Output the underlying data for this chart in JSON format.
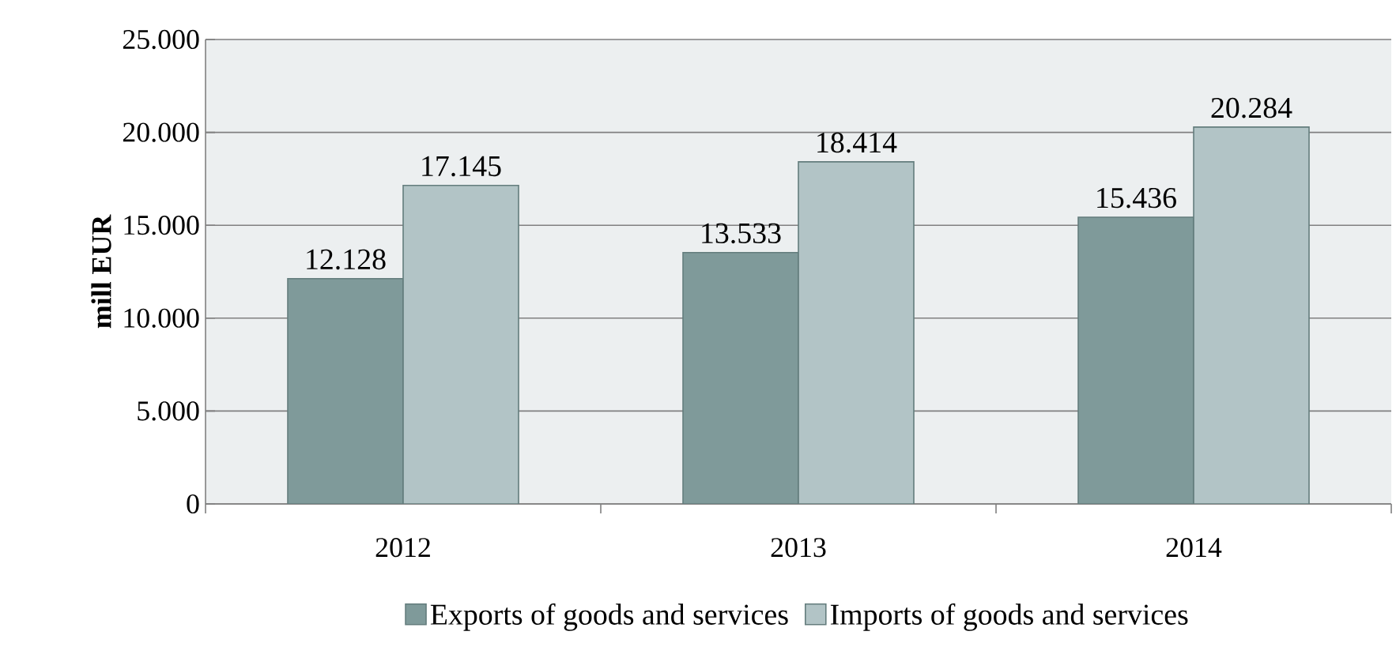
{
  "chart_data": {
    "type": "bar",
    "ylabel": "mill EUR",
    "categories": [
      "2012",
      "2013",
      "2014"
    ],
    "series": [
      {
        "name": "Exports of goods and services",
        "color": "#7f9a9a",
        "values": [
          12128,
          13533,
          15436
        ],
        "value_labels": [
          "12.128",
          "13.533",
          "15.436"
        ]
      },
      {
        "name": "Imports of goods and services",
        "color": "#b2c4c6",
        "values": [
          17145,
          18414,
          20284
        ],
        "value_labels": [
          "17.145",
          "18.414",
          "20.284"
        ]
      }
    ],
    "ylim": [
      0,
      25000
    ],
    "yticks": [
      {
        "value": 0,
        "label": "0"
      },
      {
        "value": 5000,
        "label": "5.000"
      },
      {
        "value": 10000,
        "label": "10.000"
      },
      {
        "value": 15000,
        "label": "15.000"
      },
      {
        "value": 20000,
        "label": "20.000"
      },
      {
        "value": 25000,
        "label": "25.000"
      }
    ],
    "grid": "y",
    "legend": "bottom"
  }
}
